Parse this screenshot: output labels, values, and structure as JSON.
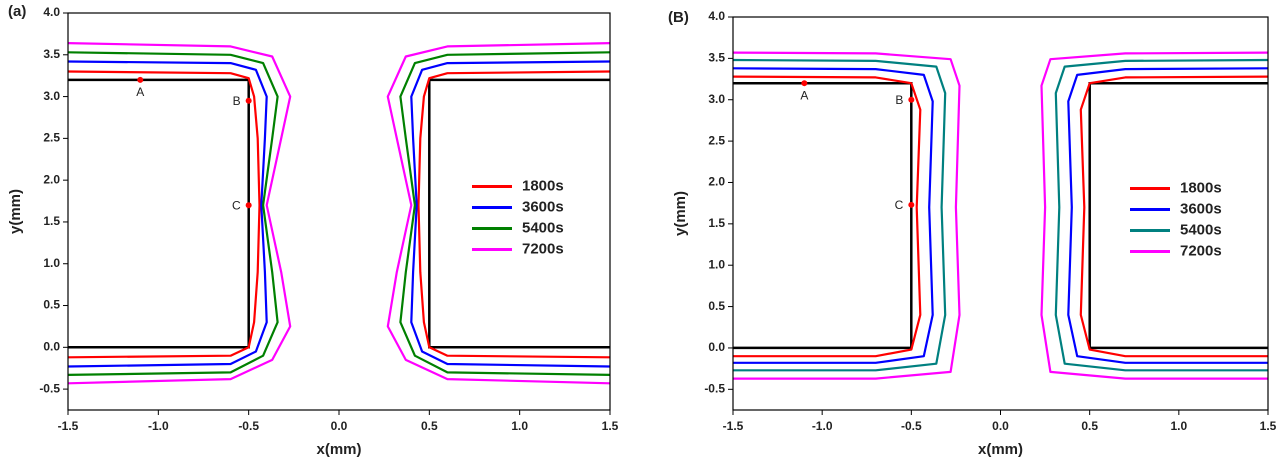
{
  "chart_data": [
    {
      "type": "line",
      "panel_label": "(a)",
      "x_label": "x(mm)",
      "y_label": "y(mm)",
      "xlim": [
        -1.5,
        1.5
      ],
      "ylim": [
        -0.75,
        4.0
      ],
      "xticks": [
        -1.5,
        {
          "value": -1,
          "label": "-1.0"
        },
        -0.5,
        {
          "value": 0,
          "label": "0.0"
        },
        0.5,
        {
          "value": 1,
          "label": "1.0"
        },
        1.5
      ],
      "yticks": [
        -0.5,
        {
          "value": 0,
          "label": "0.0"
        },
        0.5,
        {
          "value": 1,
          "label": "1.0"
        },
        1.5,
        {
          "value": 2,
          "label": "2.0"
        },
        2.5,
        {
          "value": 3,
          "label": "3.0"
        },
        3.5,
        {
          "value": 4,
          "label": "4.0"
        }
      ],
      "legend": "right",
      "mask": {
        "color": "#000000",
        "x": [
          -1.5,
          -0.5,
          -0.5,
          -1.5,
          null,
          1.5,
          0.5,
          0.5,
          1.5
        ],
        "values": [
          3.2,
          3.2,
          0,
          0,
          null,
          3.2,
          3.2,
          0,
          0
        ]
      },
      "series": [
        {
          "name": "1800s",
          "color": "#ff0000",
          "x": [
            -1.5,
            -0.6,
            -0.5,
            -0.47,
            -0.45,
            -0.44,
            -0.45,
            -0.47,
            -0.5,
            -0.6,
            -1.5,
            null,
            1.5,
            0.6,
            0.5,
            0.47,
            0.45,
            0.44,
            0.45,
            0.47,
            0.5,
            0.6,
            1.5
          ],
          "values": [
            3.3,
            3.28,
            3.22,
            3.0,
            2.5,
            1.7,
            0.9,
            0.3,
            0.0,
            -0.1,
            -0.12,
            null,
            3.3,
            3.28,
            3.22,
            3.0,
            2.5,
            1.7,
            0.9,
            0.3,
            0.0,
            -0.1,
            -0.12
          ]
        },
        {
          "name": "3600s",
          "color": "#0000ff",
          "x": [
            -1.5,
            -0.6,
            -0.46,
            -0.4,
            -0.41,
            -0.43,
            -0.41,
            -0.4,
            -0.46,
            -0.6,
            -1.5,
            null,
            1.5,
            0.6,
            0.46,
            0.4,
            0.41,
            0.43,
            0.41,
            0.4,
            0.46,
            0.6,
            1.5
          ],
          "values": [
            3.42,
            3.4,
            3.32,
            3.0,
            2.5,
            1.7,
            0.9,
            0.3,
            -0.05,
            -0.2,
            -0.23,
            null,
            3.42,
            3.4,
            3.32,
            3.0,
            2.5,
            1.7,
            0.9,
            0.3,
            -0.05,
            -0.2,
            -0.23
          ]
        },
        {
          "name": "5400s",
          "color": "#008000",
          "x": [
            -1.5,
            -0.6,
            -0.42,
            -0.34,
            -0.37,
            -0.42,
            -0.37,
            -0.34,
            -0.42,
            -0.6,
            -1.5,
            null,
            1.5,
            0.6,
            0.42,
            0.34,
            0.37,
            0.42,
            0.37,
            0.34,
            0.42,
            0.6,
            1.5
          ],
          "values": [
            3.53,
            3.5,
            3.4,
            3.0,
            2.5,
            1.7,
            0.9,
            0.3,
            -0.1,
            -0.3,
            -0.33,
            null,
            3.53,
            3.5,
            3.4,
            3.0,
            2.5,
            1.7,
            0.9,
            0.3,
            -0.1,
            -0.3,
            -0.33
          ]
        },
        {
          "name": "7200s",
          "color": "#ff00ff",
          "x": [
            -1.5,
            -0.6,
            -0.37,
            -0.27,
            -0.32,
            -0.4,
            -0.32,
            -0.27,
            -0.37,
            -0.6,
            -1.5,
            null,
            1.5,
            0.6,
            0.37,
            0.27,
            0.32,
            0.4,
            0.32,
            0.27,
            0.37,
            0.6,
            1.5
          ],
          "values": [
            3.64,
            3.6,
            3.48,
            3.0,
            2.5,
            1.7,
            0.9,
            0.25,
            -0.15,
            -0.38,
            -0.43,
            null,
            3.64,
            3.6,
            3.48,
            3.0,
            2.5,
            1.7,
            0.9,
            0.25,
            -0.15,
            -0.38,
            -0.43
          ]
        }
      ],
      "points": {
        "color": "#ff0000",
        "items": [
          {
            "label": "A",
            "x": -1.1,
            "y": 3.2
          },
          {
            "label": "B",
            "x": -0.5,
            "y": 2.95
          },
          {
            "label": "C",
            "x": -0.5,
            "y": 1.7
          }
        ]
      }
    },
    {
      "type": "line",
      "panel_label": "(B)",
      "x_label": "x(mm)",
      "y_label": "y(mm)",
      "xlim": [
        -1.5,
        1.5
      ],
      "ylim": [
        -0.75,
        4.0
      ],
      "xticks": [
        -1.5,
        {
          "value": -1,
          "label": "-1.0"
        },
        -0.5,
        {
          "value": 0,
          "label": "0.0"
        },
        0.5,
        {
          "value": 1,
          "label": "1.0"
        },
        1.5
      ],
      "yticks": [
        -0.5,
        {
          "value": 0,
          "label": "0.0"
        },
        0.5,
        {
          "value": 1,
          "label": "1.0"
        },
        1.5,
        {
          "value": 2,
          "label": "2.0"
        },
        2.5,
        {
          "value": 3,
          "label": "3.0"
        },
        3.5,
        {
          "value": 4,
          "label": "4.0"
        }
      ],
      "legend": "right",
      "mask": {
        "color": "#000000",
        "x": [
          -1.5,
          -0.5,
          -0.5,
          -1.5,
          null,
          1.5,
          0.5,
          0.5,
          1.5
        ],
        "values": [
          3.2,
          3.2,
          0,
          0,
          null,
          3.2,
          3.2,
          0,
          0
        ]
      },
      "series": [
        {
          "name": "1800s",
          "color": "#ff0000",
          "x": [
            -1.5,
            -0.7,
            -0.5,
            -0.45,
            -0.47,
            -0.45,
            -0.5,
            -0.7,
            -1.5,
            null,
            1.5,
            0.7,
            0.5,
            0.45,
            0.47,
            0.45,
            0.5,
            0.7,
            1.5
          ],
          "values": [
            3.28,
            3.27,
            3.2,
            2.88,
            1.7,
            0.4,
            -0.02,
            -0.1,
            -0.1,
            null,
            3.28,
            3.27,
            3.2,
            2.88,
            1.7,
            0.4,
            -0.02,
            -0.1,
            -0.1
          ]
        },
        {
          "name": "3600s",
          "color": "#0000ff",
          "x": [
            -1.5,
            -0.7,
            -0.43,
            -0.38,
            -0.4,
            -0.38,
            -0.43,
            -0.7,
            -1.5,
            null,
            1.5,
            0.7,
            0.43,
            0.38,
            0.4,
            0.38,
            0.43,
            0.7,
            1.5
          ],
          "values": [
            3.38,
            3.37,
            3.3,
            2.98,
            1.7,
            0.4,
            -0.1,
            -0.18,
            -0.18,
            null,
            3.38,
            3.37,
            3.3,
            2.98,
            1.7,
            0.4,
            -0.1,
            -0.18,
            -0.18
          ]
        },
        {
          "name": "5400s",
          "color": "#008080",
          "x": [
            -1.5,
            -0.7,
            -0.36,
            -0.31,
            -0.33,
            -0.31,
            -0.36,
            -0.7,
            -1.5,
            null,
            1.5,
            0.7,
            0.36,
            0.31,
            0.33,
            0.31,
            0.36,
            0.7,
            1.5
          ],
          "values": [
            3.48,
            3.47,
            3.4,
            3.08,
            1.7,
            0.4,
            -0.19,
            -0.27,
            -0.27,
            null,
            3.48,
            3.47,
            3.4,
            3.08,
            1.7,
            0.4,
            -0.19,
            -0.27,
            -0.27
          ]
        },
        {
          "name": "7200s",
          "color": "#ff00ff",
          "x": [
            -1.5,
            -0.7,
            -0.28,
            -0.23,
            -0.25,
            -0.23,
            -0.28,
            -0.7,
            -1.5,
            null,
            1.5,
            0.7,
            0.28,
            0.23,
            0.25,
            0.23,
            0.28,
            0.7,
            1.5
          ],
          "values": [
            3.57,
            3.56,
            3.49,
            3.17,
            1.7,
            0.4,
            -0.29,
            -0.37,
            -0.37,
            null,
            3.57,
            3.56,
            3.49,
            3.17,
            1.7,
            0.4,
            -0.29,
            -0.37,
            -0.37
          ]
        }
      ],
      "points": {
        "color": "#ff0000",
        "items": [
          {
            "label": "A",
            "x": -1.1,
            "y": 3.2
          },
          {
            "label": "B",
            "x": -0.5,
            "y": 3.0
          },
          {
            "label": "C",
            "x": -0.5,
            "y": 1.73
          }
        ]
      }
    }
  ]
}
